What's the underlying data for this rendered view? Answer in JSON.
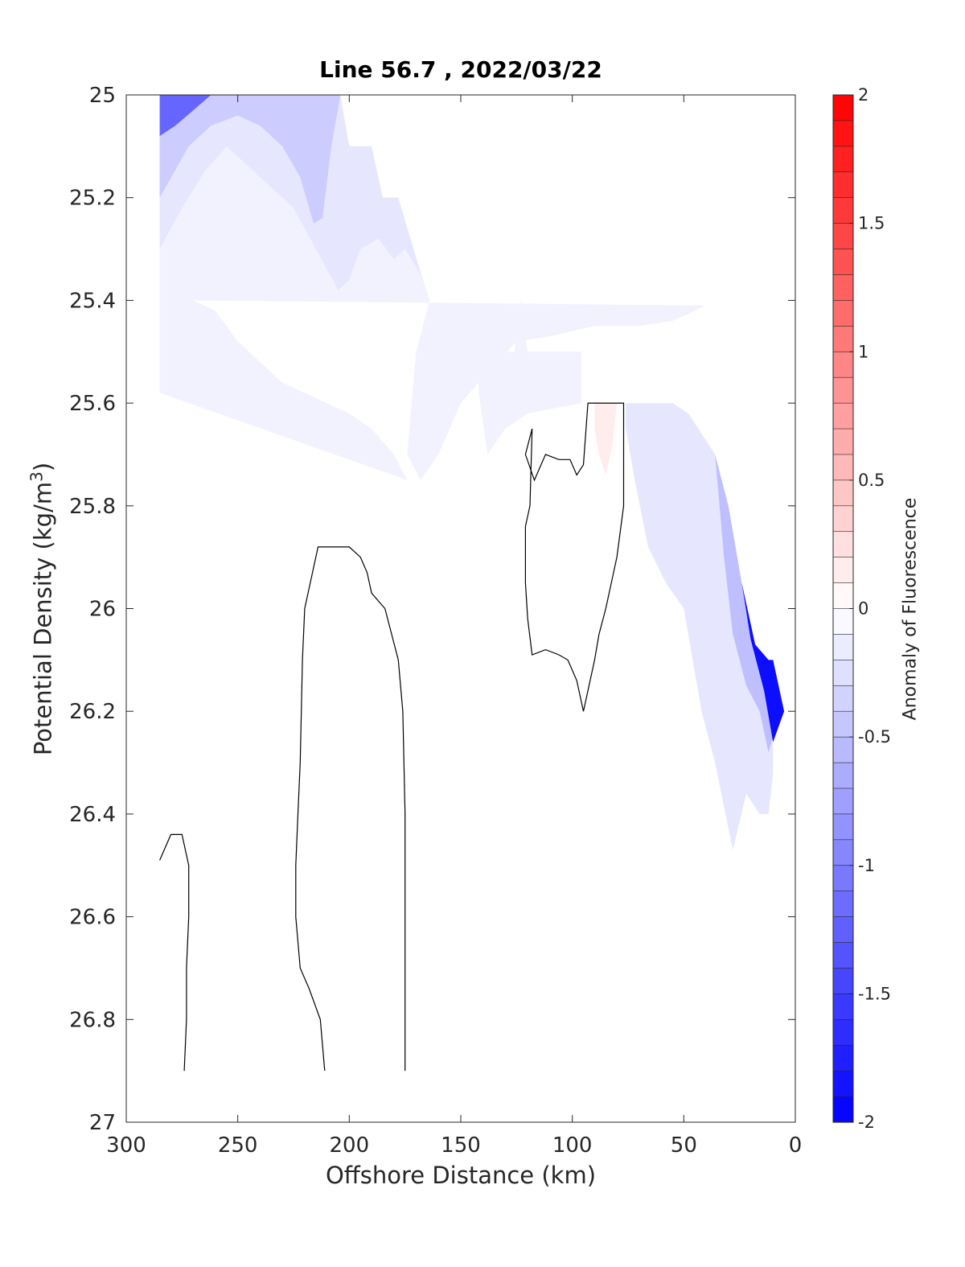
{
  "chart_data": {
    "type": "contour",
    "title": "Line 56.7 , 2022/03/22",
    "xlabel": "Offshore Distance (km)",
    "ylabel_main": "Potential Density (kg/m",
    "ylabel_sup": "3",
    "ylabel_close": ")",
    "colorbar_label": "Anomaly of Fluorescence",
    "xlim": [
      300,
      0
    ],
    "x_reversed": true,
    "ylim": [
      25,
      27
    ],
    "y_reversed": true,
    "xticks": [
      300,
      250,
      200,
      150,
      100,
      50,
      0
    ],
    "xtick_labels": [
      "300",
      "250",
      "200",
      "150",
      "100",
      "50",
      "0"
    ],
    "yticks": [
      25,
      25.2,
      25.4,
      25.6,
      25.8,
      26,
      26.2,
      26.4,
      26.6,
      26.8,
      27
    ],
    "ytick_labels": [
      "25",
      "25.2",
      "25.4",
      "25.6",
      "25.8",
      "26",
      "26.2",
      "26.4",
      "26.6",
      "26.8",
      "27"
    ],
    "colorbar": {
      "range": [
        -2,
        2
      ],
      "levels": 40,
      "ticks": [
        2,
        1.5,
        1,
        0.5,
        0,
        -0.5,
        -1,
        -1.5,
        -2
      ],
      "tick_labels": [
        "2",
        "1.5",
        "1",
        "0.5",
        "0",
        "-0.5",
        "-1",
        "-1.5",
        "-2"
      ],
      "colormap": "blue-white-red",
      "color_low": "#0000ff",
      "color_mid": "#ffffff",
      "color_high": "#ff0000"
    },
    "filled_regions": [
      {
        "name": "offshore upper layer",
        "value": -0.1,
        "points": [
          [
            285,
            25
          ],
          [
            204,
            25
          ],
          [
            200,
            25.1
          ],
          [
            190,
            25.1
          ],
          [
            185,
            25.2
          ],
          [
            178,
            25.2
          ],
          [
            164,
            25.4
          ],
          [
            170,
            25.5
          ],
          [
            174,
            25.7
          ],
          [
            168,
            25.75
          ],
          [
            160,
            25.7
          ],
          [
            150,
            25.6
          ],
          [
            140,
            25.55
          ],
          [
            125,
            25.48
          ],
          [
            110,
            25.47
          ],
          [
            100,
            25.46
          ],
          [
            90,
            25.45
          ],
          [
            70,
            25.45
          ],
          [
            55,
            25.44
          ],
          [
            45,
            25.42
          ],
          [
            40,
            25.41
          ],
          [
            270,
            25.4
          ],
          [
            260,
            25.42
          ],
          [
            250,
            25.48
          ],
          [
            240,
            25.52
          ],
          [
            230,
            25.56
          ],
          [
            220,
            25.58
          ],
          [
            210,
            25.6
          ],
          [
            200,
            25.62
          ],
          [
            190,
            25.65
          ],
          [
            180,
            25.7
          ],
          [
            174,
            25.75
          ],
          [
            285,
            25.58
          ]
        ]
      },
      {
        "name": "offshore upper layer interior",
        "value": -0.2,
        "points": [
          [
            285,
            25
          ],
          [
            204,
            25
          ],
          [
            200,
            25.1
          ],
          [
            190,
            25.1
          ],
          [
            185,
            25.2
          ],
          [
            178,
            25.2
          ],
          [
            168,
            25.35
          ],
          [
            175,
            25.3
          ],
          [
            180,
            25.32
          ],
          [
            187,
            25.28
          ],
          [
            195,
            25.3
          ],
          [
            200,
            25.36
          ],
          [
            205,
            25.38
          ],
          [
            215,
            25.3
          ],
          [
            225,
            25.22
          ],
          [
            240,
            25.16
          ],
          [
            255,
            25.1
          ],
          [
            265,
            25.15
          ],
          [
            275,
            25.22
          ],
          [
            285,
            25.3
          ]
        ]
      },
      {
        "name": "offshore upper layer core",
        "value": -0.4,
        "points": [
          [
            285,
            25
          ],
          [
            204,
            25
          ],
          [
            208,
            25.1
          ],
          [
            212,
            25.24
          ],
          [
            216,
            25.25
          ],
          [
            222,
            25.16
          ],
          [
            230,
            25.1
          ],
          [
            240,
            25.06
          ],
          [
            250,
            25.04
          ],
          [
            262,
            25.06
          ],
          [
            272,
            25.1
          ],
          [
            285,
            25.2
          ]
        ]
      },
      {
        "name": "offshore surface maximum",
        "value": -1.2,
        "points": [
          [
            285,
            25
          ],
          [
            262,
            25
          ],
          [
            270,
            25.03
          ],
          [
            278,
            25.06
          ],
          [
            285,
            25.08
          ]
        ]
      },
      {
        "name": "mid-shelf patch",
        "value": -0.1,
        "points": [
          [
            142,
            25.52
          ],
          [
            140,
            25.5
          ],
          [
            126,
            25.5
          ],
          [
            123,
            25.4
          ],
          [
            120,
            25.5
          ],
          [
            96,
            25.5
          ],
          [
            96,
            25.6
          ],
          [
            120,
            25.62
          ],
          [
            130,
            25.65
          ],
          [
            138,
            25.7
          ],
          [
            142,
            25.58
          ]
        ]
      },
      {
        "name": "nearshore band",
        "value": -0.2,
        "points": [
          [
            76,
            25.6
          ],
          [
            55,
            25.6
          ],
          [
            48,
            25.62
          ],
          [
            36,
            25.7
          ],
          [
            26,
            25.9
          ],
          [
            20,
            26.1
          ],
          [
            13,
            26.2
          ],
          [
            10,
            26.2
          ],
          [
            10,
            26.32
          ],
          [
            12,
            26.4
          ],
          [
            16,
            26.4
          ],
          [
            22,
            26.36
          ],
          [
            28,
            26.47
          ],
          [
            36,
            26.3
          ],
          [
            42,
            26.2
          ],
          [
            50,
            26.0
          ],
          [
            58,
            25.95
          ],
          [
            66,
            25.88
          ],
          [
            72,
            25.75
          ],
          [
            76,
            25.65
          ]
        ]
      },
      {
        "name": "nearshore band interior",
        "value": -0.5,
        "points": [
          [
            36,
            25.7
          ],
          [
            30,
            25.8
          ],
          [
            24,
            25.95
          ],
          [
            18,
            26.08
          ],
          [
            14,
            26.12
          ],
          [
            10,
            26.18
          ],
          [
            8,
            26.22
          ],
          [
            12,
            26.28
          ],
          [
            16,
            26.2
          ],
          [
            22,
            26.15
          ],
          [
            28,
            26.05
          ],
          [
            32,
            25.9
          ]
        ]
      },
      {
        "name": "nearshore bottom maximum",
        "value": -1.9,
        "points": [
          [
            24,
            25.95
          ],
          [
            18,
            26.07
          ],
          [
            12,
            26.1
          ],
          [
            10,
            26.1
          ],
          [
            5,
            26.2
          ],
          [
            10,
            26.26
          ],
          [
            14,
            26.16
          ],
          [
            20,
            26.06
          ]
        ]
      },
      {
        "name": "small positive patch",
        "value": 0.15,
        "points": [
          [
            90,
            25.6
          ],
          [
            80,
            25.6
          ],
          [
            82,
            25.68
          ],
          [
            85,
            25.74
          ],
          [
            88,
            25.7
          ],
          [
            90,
            25.65
          ]
        ]
      }
    ],
    "contour_lines": [
      {
        "name": "contour 1",
        "points": [
          [
            285,
            26.49
          ],
          [
            280,
            26.44
          ],
          [
            275,
            26.44
          ],
          [
            272,
            26.5
          ],
          [
            272,
            26.6
          ],
          [
            273,
            26.7
          ],
          [
            273,
            26.8
          ],
          [
            274,
            26.9
          ]
        ]
      },
      {
        "name": "contour 2",
        "points": [
          [
            211,
            26.9
          ],
          [
            213,
            26.8
          ],
          [
            218,
            26.74
          ],
          [
            222,
            26.7
          ],
          [
            224,
            26.6
          ],
          [
            224,
            26.5
          ],
          [
            223,
            26.4
          ],
          [
            222,
            26.3
          ],
          [
            221,
            26.1
          ],
          [
            220,
            26.0
          ],
          [
            214,
            25.88
          ],
          [
            200,
            25.88
          ],
          [
            195,
            25.9
          ],
          [
            192,
            25.93
          ],
          [
            190,
            25.97
          ],
          [
            184,
            26.0
          ],
          [
            178,
            26.1
          ],
          [
            176,
            26.2
          ],
          [
            175,
            26.4
          ],
          [
            175,
            26.6
          ],
          [
            175,
            26.8
          ],
          [
            175,
            26.9
          ]
        ]
      },
      {
        "name": "contour 3",
        "points": [
          [
            118,
            25.65
          ],
          [
            121,
            25.7
          ],
          [
            117,
            25.75
          ],
          [
            112,
            25.7
          ],
          [
            106,
            25.71
          ],
          [
            101,
            25.71
          ],
          [
            98,
            25.74
          ],
          [
            95,
            25.72
          ],
          [
            93,
            25.6
          ],
          [
            77,
            25.6
          ],
          [
            77,
            25.8
          ],
          [
            80,
            25.9
          ],
          [
            85,
            26.0
          ],
          [
            88,
            26.05
          ],
          [
            90,
            26.1
          ],
          [
            95,
            26.2
          ],
          [
            98,
            26.14
          ],
          [
            102,
            26.1
          ],
          [
            106,
            26.09
          ],
          [
            112,
            26.08
          ],
          [
            118,
            26.09
          ],
          [
            120,
            26.02
          ],
          [
            121,
            25.95
          ],
          [
            121,
            25.84
          ],
          [
            119,
            25.8
          ],
          [
            118,
            25.65
          ]
        ]
      }
    ]
  }
}
